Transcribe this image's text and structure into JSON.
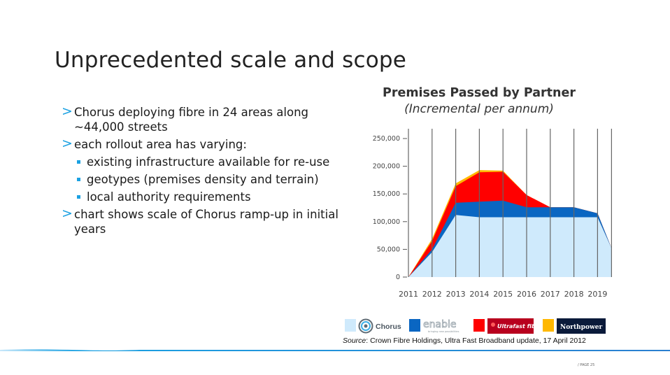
{
  "slide": {
    "title": "Unprecedented scale and scope",
    "bullets": [
      {
        "level": 1,
        "text": "Chorus deploying fibre in 24 areas along ~44,000 streets"
      },
      {
        "level": 1,
        "text": "each rollout area has varying:"
      },
      {
        "level": 2,
        "text": "existing infrastructure available for re-use"
      },
      {
        "level": 2,
        "text": "geotypes (premises density and terrain)"
      },
      {
        "level": 2,
        "text": "local authority requirements"
      },
      {
        "level": 1,
        "text": "chart shows scale of Chorus ramp-up in initial years"
      }
    ],
    "bullet_arrow": ">",
    "source_label": "Source",
    "source_text": ": Crown Fibre Holdings, Ultra Fast Broadband update, 17 April 2012",
    "page_number": "/ PAGE 25"
  },
  "legend": [
    {
      "name": "Chorus",
      "color": "#cfeafc"
    },
    {
      "name": "enable",
      "tagline": "bringing new possibilities",
      "color": "#0a66c2"
    },
    {
      "name": "Ultrafast fibre",
      "color": "#ff0000"
    },
    {
      "name": "Northpower",
      "color": "#ffb800"
    }
  ],
  "chart_data": {
    "type": "area",
    "stacked": true,
    "title": "Premises Passed by Partner",
    "subtitle": "(Incremental per annum)",
    "categories": [
      "2011",
      "2012",
      "2013",
      "2014",
      "2015",
      "2016",
      "2017",
      "2018",
      "2019"
    ],
    "series": [
      {
        "name": "Chorus",
        "color": "#cfeafc",
        "values": [
          0,
          45000,
          112000,
          108000,
          108000,
          108000,
          108000,
          108000,
          108000
        ]
      },
      {
        "name": "enable",
        "color": "#0a66c2",
        "values": [
          0,
          5000,
          22000,
          28000,
          30000,
          18000,
          18000,
          18000,
          7000
        ]
      },
      {
        "name": "Ultrafast fibre",
        "color": "#ff0000",
        "values": [
          0,
          15000,
          30000,
          53000,
          52000,
          22000,
          0,
          0,
          0
        ]
      },
      {
        "name": "Northpower",
        "color": "#ffb800",
        "values": [
          0,
          4000,
          5000,
          4000,
          2000,
          0,
          0,
          0,
          0
        ]
      }
    ],
    "tail_end": 52000,
    "yticks": [
      "0",
      "50,000",
      "100,000",
      "150,000",
      "200,000",
      "250,000"
    ],
    "ylim": [
      0,
      250000
    ],
    "grid": "vertical lines at each year",
    "legend_position": "bottom"
  }
}
